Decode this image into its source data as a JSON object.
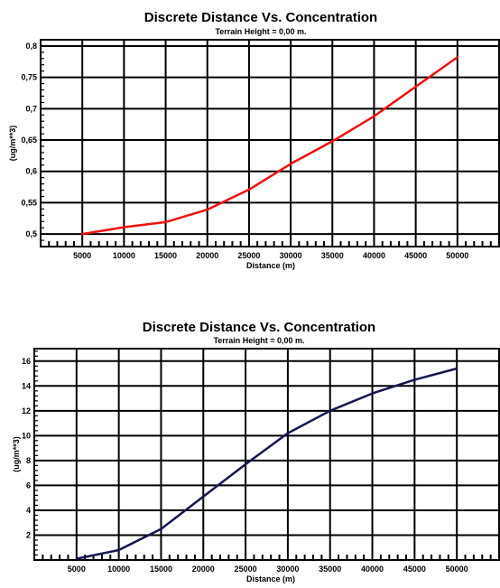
{
  "chart_data": [
    {
      "type": "line",
      "title": "Discrete Distance Vs. Concentration",
      "subtitle": "Terrain Height = 0,00 m.",
      "xlabel": "Distance (m)",
      "ylabel": "(ug/m**3)",
      "xlim": [
        0,
        55000
      ],
      "ylim": [
        0.48,
        0.81
      ],
      "xticks": [
        5000,
        10000,
        15000,
        20000,
        25000,
        30000,
        35000,
        40000,
        45000,
        50000
      ],
      "xtick_labels": [
        "5000",
        "10000",
        "15000",
        "20000",
        "25000",
        "30000",
        "35000",
        "40000",
        "45000",
        "50000"
      ],
      "yticks": [
        0.5,
        0.55,
        0.6,
        0.65,
        0.7,
        0.75,
        0.8
      ],
      "ytick_labels": [
        "0,5",
        "0,55",
        "0,6",
        "0,65",
        "0,7",
        "0,75",
        "0,8"
      ],
      "grid": true,
      "color": "#ee1111",
      "x": [
        5000,
        10000,
        15000,
        20000,
        25000,
        30000,
        35000,
        40000,
        45000,
        50000
      ],
      "y": [
        0.5,
        0.511,
        0.519,
        0.539,
        0.571,
        0.612,
        0.648,
        0.688,
        0.735,
        0.782
      ]
    },
    {
      "type": "line",
      "title": "Discrete Distance Vs. Concentration",
      "subtitle": "Terrain Height = 0,00 m.",
      "xlabel": "Distance (m)",
      "ylabel": "(ug/m**3)",
      "xlim": [
        0,
        55000
      ],
      "ylim": [
        0,
        17
      ],
      "xticks": [
        5000,
        10000,
        15000,
        20000,
        25000,
        30000,
        35000,
        40000,
        45000,
        50000
      ],
      "xtick_labels": [
        "5000",
        "10000",
        "15000",
        "20000",
        "25000",
        "30000",
        "35000",
        "40000",
        "45000",
        "50000"
      ],
      "yticks": [
        2,
        4,
        6,
        8,
        10,
        12,
        14,
        16
      ],
      "ytick_labels": [
        "2",
        "4",
        "6",
        "8",
        "10",
        "12",
        "14",
        "16"
      ],
      "grid": true,
      "color": "#141650",
      "x": [
        5000,
        10000,
        15000,
        20000,
        25000,
        30000,
        35000,
        40000,
        45000,
        50000
      ],
      "y": [
        0.1,
        0.8,
        2.5,
        5.1,
        7.7,
        10.2,
        12.0,
        13.4,
        14.5,
        15.4
      ]
    }
  ]
}
